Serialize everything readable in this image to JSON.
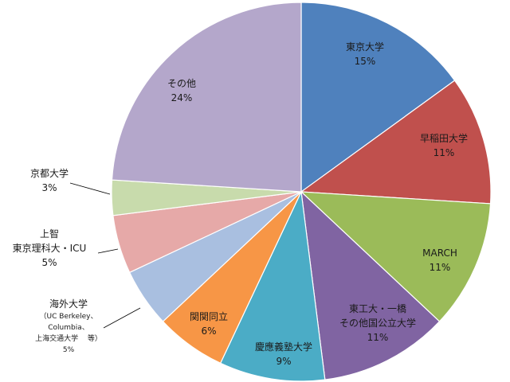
{
  "chart_data": {
    "type": "pie",
    "start_angle": "12 o'clock",
    "direction": "clockwise",
    "slices": [
      {
        "label": "東京大学",
        "value": 15,
        "pct_label": "15%",
        "color": "#4f81bd"
      },
      {
        "label": "早稲田大学",
        "value": 11,
        "pct_label": "11%",
        "color": "#c0504d"
      },
      {
        "label": "MARCH",
        "value": 11,
        "pct_label": "11%",
        "color": "#9bbb59"
      },
      {
        "label": "東工大・一橋 その他国公立大学",
        "label_lines": [
          "東工大・一橋",
          "その他国公立大学"
        ],
        "value": 11,
        "pct_label": "11%",
        "color": "#8064a2"
      },
      {
        "label": "慶應義塾大学",
        "value": 9,
        "pct_label": "9%",
        "color": "#4bacc6"
      },
      {
        "label": "関関同立",
        "value": 6,
        "pct_label": "6%",
        "color": "#f79646"
      },
      {
        "label": "海外大学 （UC Berkeley、 Columbia、 上海交通大学　 等）",
        "label_lines": [
          "海外大学",
          "（UC Berkeley、",
          "Columbia、",
          "上海交通大学　 等）"
        ],
        "value": 5,
        "pct_label": "5%",
        "color": "#a9bfe0"
      },
      {
        "label": "上智 東京理科大・ICU",
        "label_lines": [
          "上智",
          "東京理科大・ICU"
        ],
        "value": 5,
        "pct_label": "5%",
        "color": "#e6a9a8"
      },
      {
        "label": "京都大学",
        "value": 3,
        "pct_label": "3%",
        "color": "#c8dbac"
      },
      {
        "label": "その他",
        "value": 24,
        "pct_label": "24%",
        "color": "#b4a7cb"
      }
    ]
  }
}
